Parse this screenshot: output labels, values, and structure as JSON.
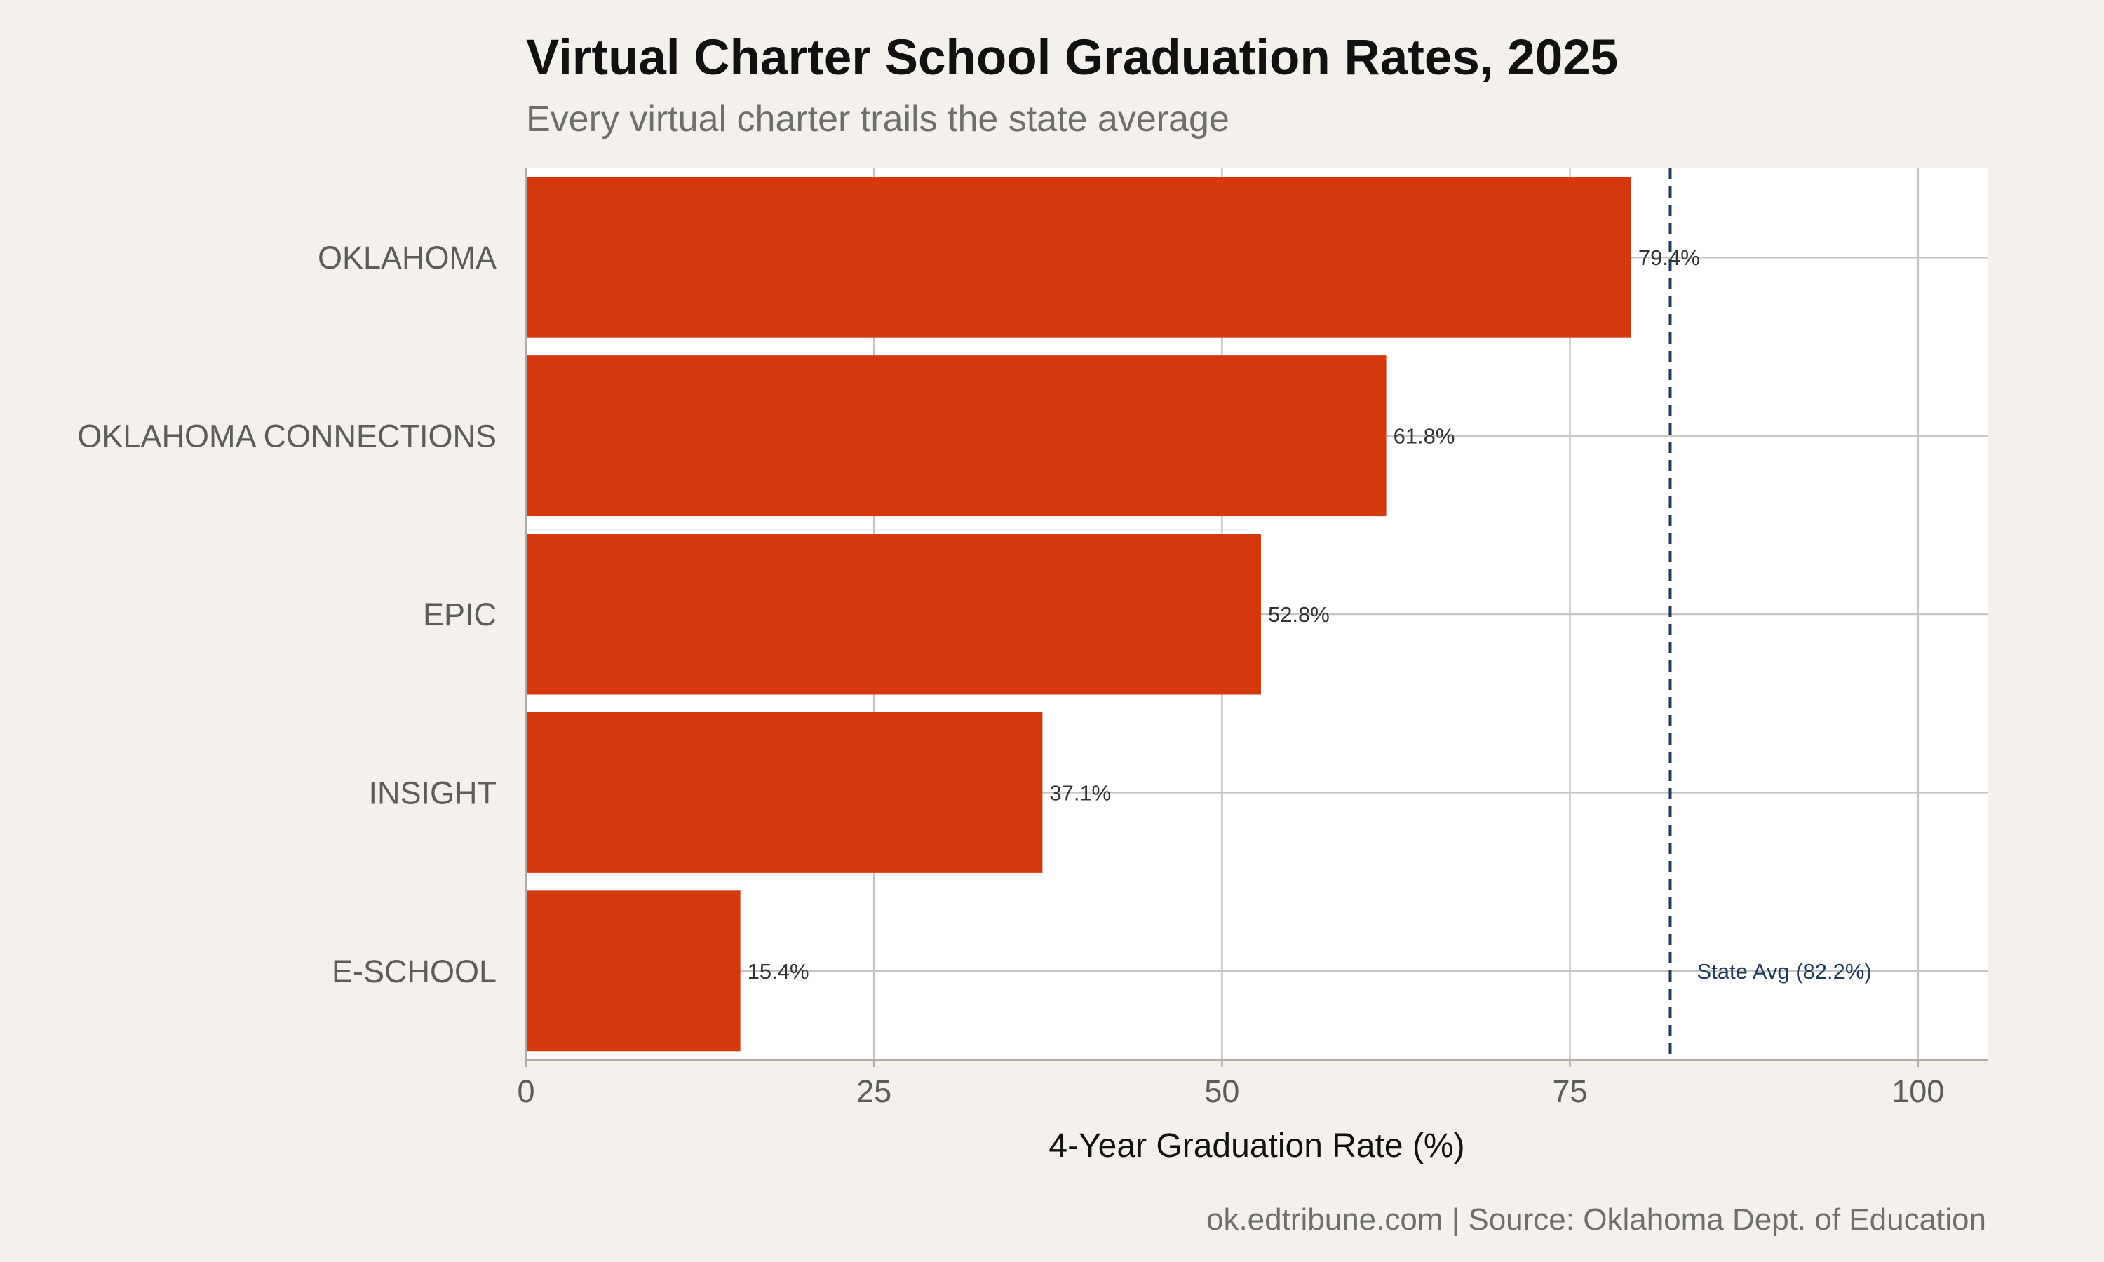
{
  "header": {
    "title": "Virtual Charter School Graduation Rates, 2025",
    "subtitle": "Every virtual charter trails the state average"
  },
  "footer": {
    "caption": "ok.edtribune.com | Source: Oklahoma Dept. of Education"
  },
  "chart_data": {
    "type": "bar",
    "orientation": "horizontal",
    "title": "Virtual Charter School Graduation Rates, 2025",
    "subtitle": "Every virtual charter trails the state average",
    "categories": [
      "OKLAHOMA",
      "OKLAHOMA CONNECTIONS",
      "EPIC",
      "INSIGHT",
      "E-SCHOOL"
    ],
    "values": [
      79.4,
      61.8,
      52.8,
      37.1,
      15.4
    ],
    "data_labels": [
      "79.4%",
      "61.8%",
      "52.8%",
      "37.1%",
      "15.4%"
    ],
    "xlabel": "4-Year Graduation Rate (%)",
    "ylabel": "",
    "xlim": [
      0,
      105
    ],
    "xticks": [
      0,
      25,
      50,
      75,
      100
    ],
    "xtick_labels": [
      "0",
      "25",
      "50",
      "75",
      "100"
    ],
    "grid": true,
    "reference_line": {
      "value": 82.2,
      "label": "State Avg (82.2%)",
      "style": "dashed"
    },
    "colors": {
      "bar": "#d4380d",
      "reference": "#1f3a5f",
      "panel": "#ffffff",
      "background": "#f4f1ec",
      "grid": "#c8c5c0"
    }
  }
}
